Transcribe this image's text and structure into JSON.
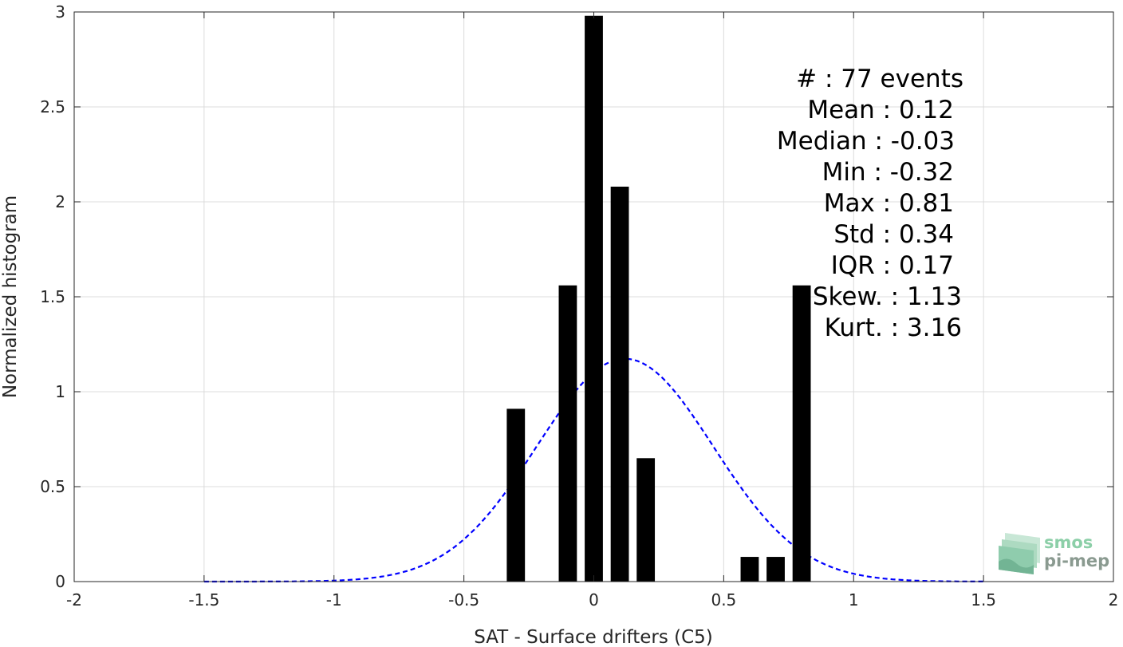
{
  "chart_data": {
    "type": "bar",
    "xlabel": "SAT - Surface drifters (C5)",
    "ylabel": "Normalized histogram",
    "xlim": [
      -2,
      2
    ],
    "ylim": [
      0,
      3
    ],
    "xticks": [
      -2,
      -1.5,
      -1,
      -0.5,
      0,
      0.5,
      1,
      1.5,
      2
    ],
    "xtick_labels": [
      "-2",
      "-1.5",
      "-1",
      "-0.5",
      "0",
      "0.5",
      "1",
      "1.5",
      "2"
    ],
    "yticks": [
      0,
      0.5,
      1,
      1.5,
      2,
      2.5,
      3
    ],
    "ytick_labels": [
      "0",
      "0.5",
      "1",
      "1.5",
      "2",
      "2.5",
      "3"
    ],
    "grid": true,
    "bar_color": "#000000",
    "bars": [
      {
        "x": -0.3,
        "value": 0.91
      },
      {
        "x": -0.1,
        "value": 1.56
      },
      {
        "x": 0.0,
        "value": 2.98
      },
      {
        "x": 0.1,
        "value": 2.08
      },
      {
        "x": 0.2,
        "value": 0.65
      },
      {
        "x": 0.6,
        "value": 0.13
      },
      {
        "x": 0.7,
        "value": 0.13
      },
      {
        "x": 0.8,
        "value": 1.56
      }
    ],
    "fit_curve": {
      "type": "normal",
      "mean": 0.12,
      "std": 0.34,
      "x_range": [
        -1.5,
        1.5
      ],
      "color": "#0000ff",
      "style": "dashed"
    },
    "stats": [
      "#  : 77 events",
      "Mean : 0.12",
      "Median : -0.03",
      "Min : -0.32",
      "Max : 0.81",
      "Std : 0.34",
      "IQR : 0.17",
      "Skew. : 1.13",
      "Kurt. : 3.16"
    ]
  },
  "logo": {
    "line1": "smos",
    "line2": "pi-mep",
    "color": "#6fbf94"
  }
}
